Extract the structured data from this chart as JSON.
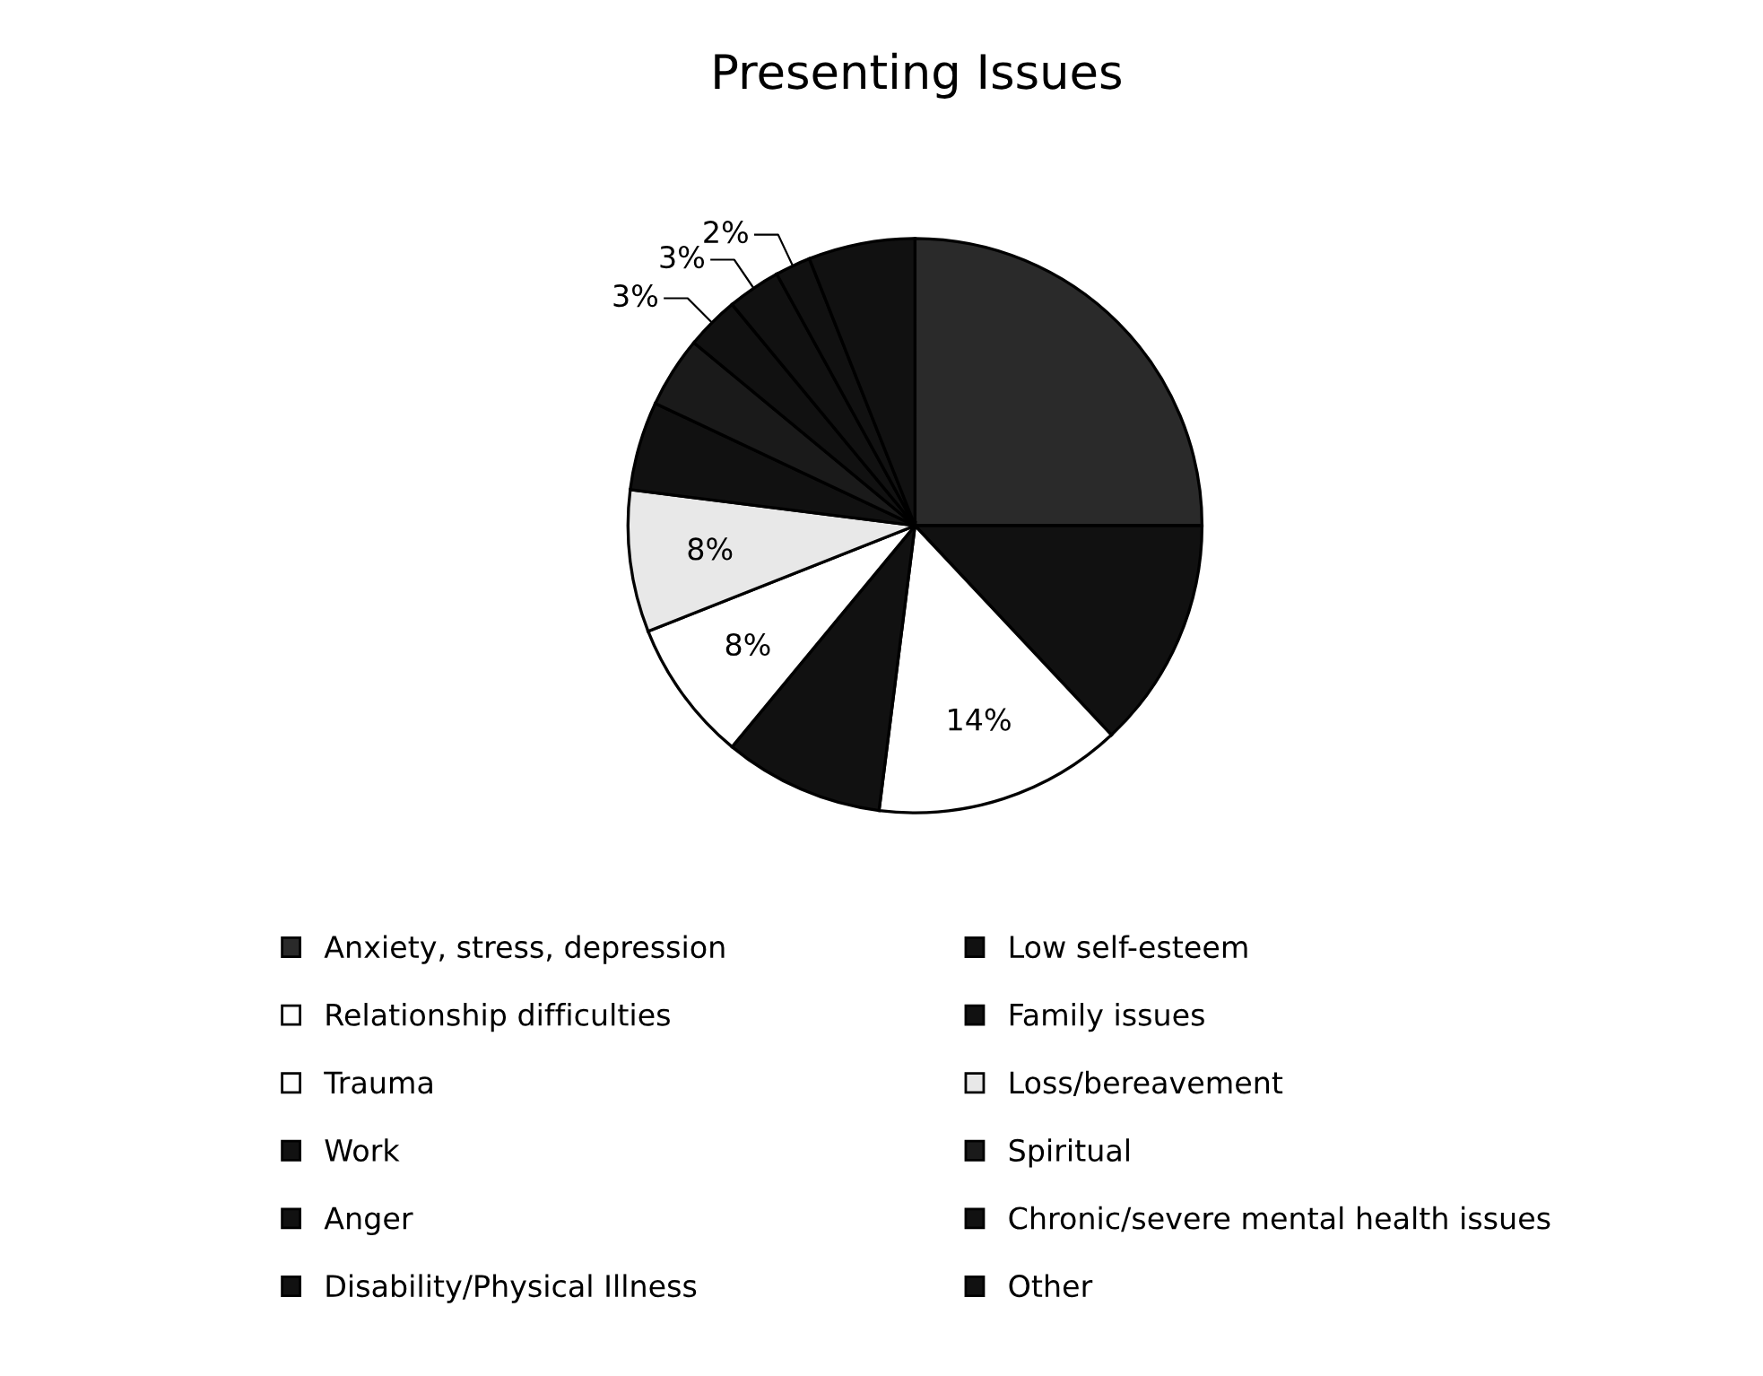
{
  "chart_data": {
    "type": "pie",
    "title": "Presenting Issues",
    "categories": [
      "Anxiety, stress, depression",
      "Low self-esteem",
      "Relationship difficulties",
      "Family issues",
      "Trauma",
      "Loss/bereavement",
      "Work",
      "Spiritual",
      "Anger",
      "Chronic/severe mental health issues",
      "Disability/Physical Illness",
      "Other"
    ],
    "values": [
      25,
      13,
      14,
      9,
      8,
      8,
      5,
      4,
      3,
      3,
      2,
      6
    ],
    "value_labels": [
      null,
      null,
      "14%",
      null,
      "8%",
      "8%",
      null,
      null,
      "3%",
      "3%",
      "2%",
      null
    ],
    "colors": [
      "#2a2a2a",
      "#111111",
      "#ffffff",
      "#111111",
      "#ffffff",
      "#e8e8e8",
      "#111111",
      "#1a1a1a",
      "#111111",
      "#111111",
      "#111111",
      "#111111"
    ],
    "legend": "bottom"
  }
}
